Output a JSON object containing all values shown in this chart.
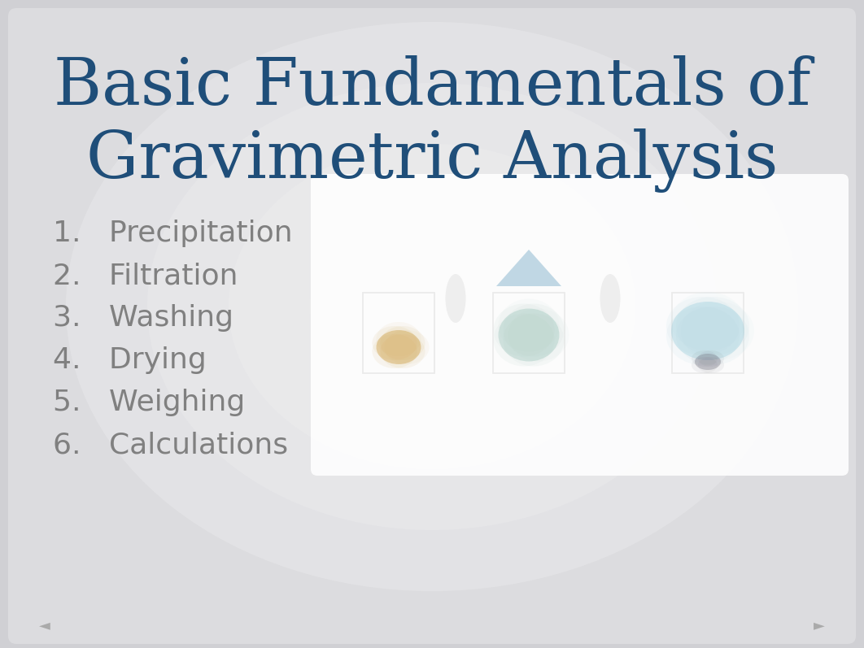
{
  "title_line1": "Basic Fundamentals of",
  "title_line2": "Gravimetric Analysis",
  "title_color": "#1F4E79",
  "title_fontsize": 58,
  "list_items": [
    "1.   Precipitation",
    "2.   Filtration",
    "3.   Washing",
    "4.   Drying",
    "5.   Weighing",
    "6.   Calculations"
  ],
  "list_color": "#808080",
  "list_fontsize": 26,
  "slide_bg": "#d0d0d4"
}
